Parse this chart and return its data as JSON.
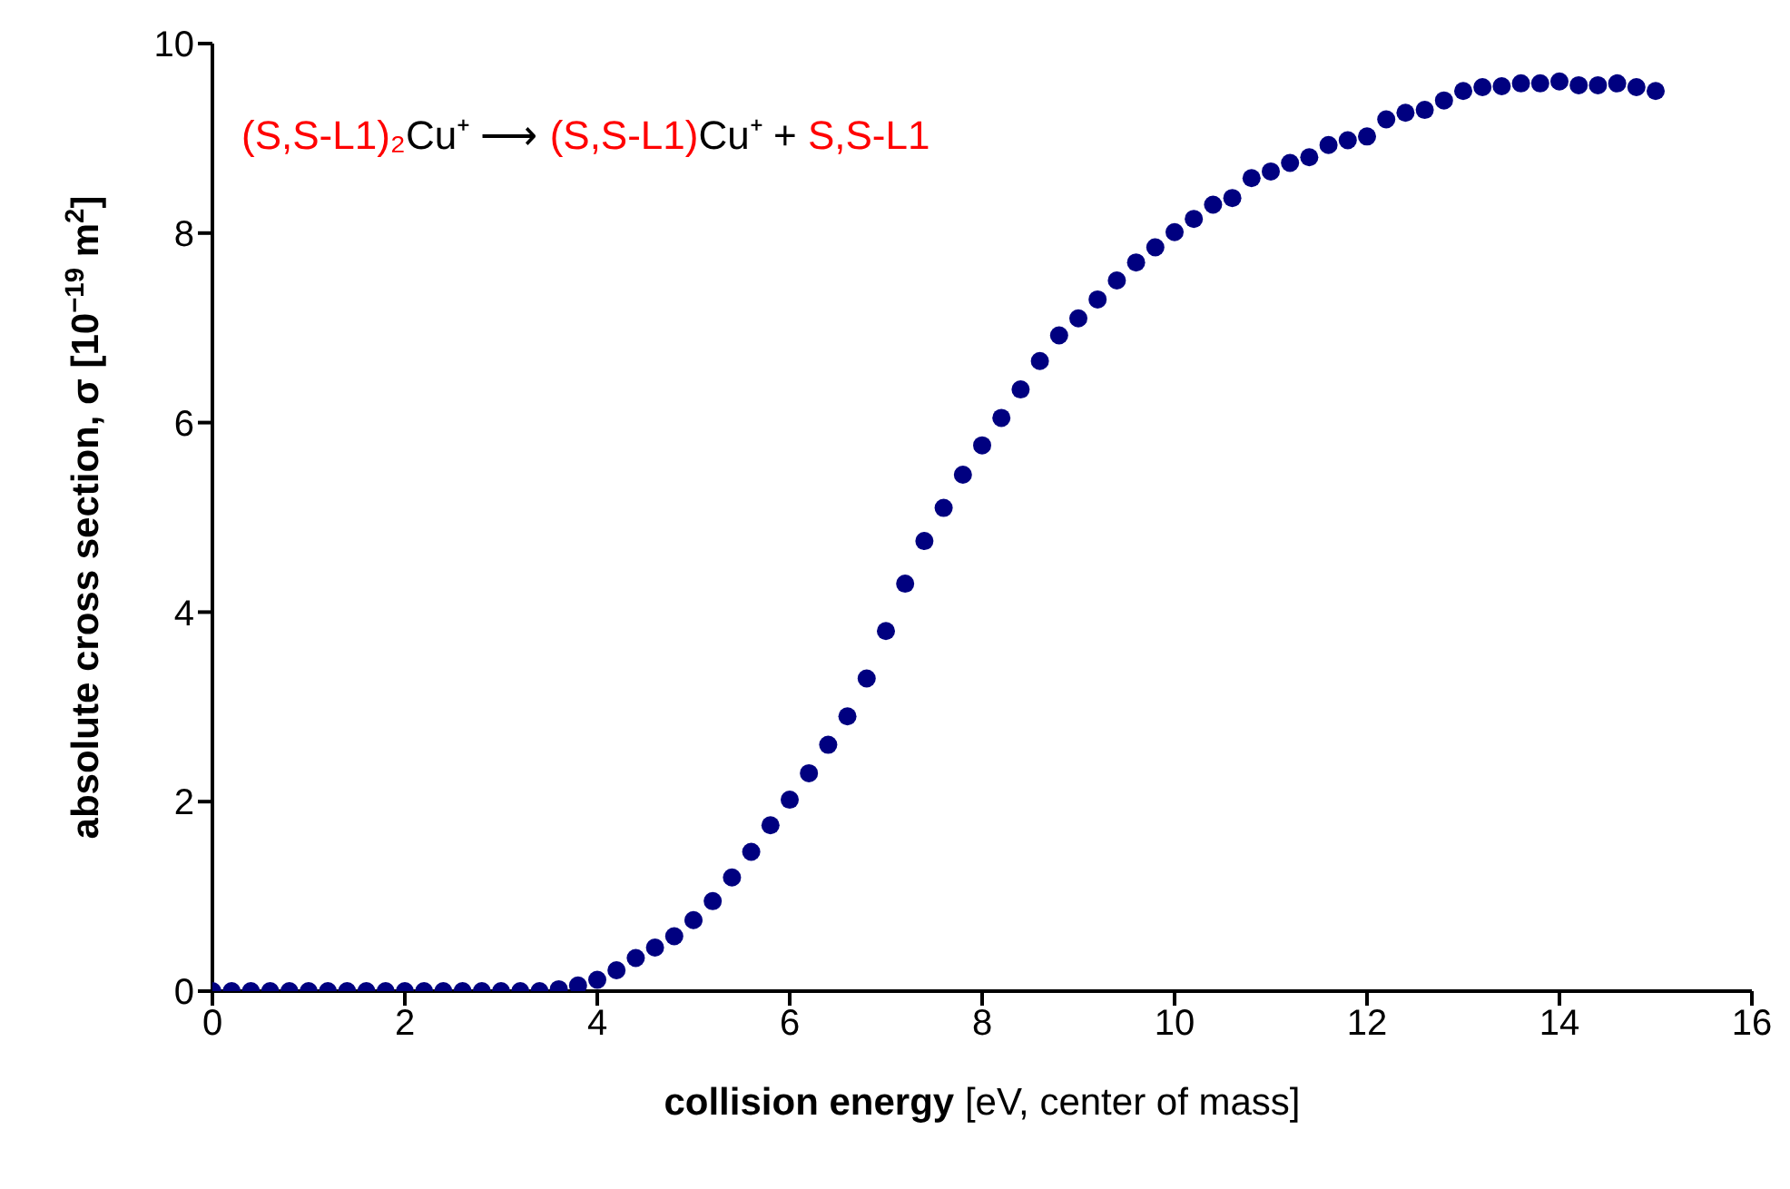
{
  "chart_data": {
    "type": "scatter",
    "xlabel": "collision energy [eV, center of mass]",
    "ylabel": "absolute cross section, σ  [10$^{−19}$ m$^{2}$]",
    "annotations": [
      "(S,S-L1)₂Cu⁺ ⟶ (S,S-L1)Cu⁺ + S,S-L1"
    ],
    "x": [
      0,
      0.2,
      0.4,
      0.6,
      0.8,
      1.0,
      1.2,
      1.4,
      1.6,
      1.8,
      2.0,
      2.2,
      2.4,
      2.6,
      2.8,
      3.0,
      3.2,
      3.4,
      3.6,
      3.8,
      4.0,
      4.2,
      4.4,
      4.6,
      4.8,
      5.0,
      5.2,
      5.4,
      5.6,
      5.8,
      6.0,
      6.2,
      6.4,
      6.6,
      6.8,
      7.0,
      7.2,
      7.4,
      7.6,
      7.8,
      8.0,
      8.2,
      8.4,
      8.6,
      8.8,
      9.0,
      9.2,
      9.4,
      9.6,
      9.8,
      10.0,
      10.2,
      10.4,
      10.6,
      10.8,
      11.0,
      11.2,
      11.4,
      11.6,
      11.8,
      12.0,
      12.2,
      12.4,
      12.6,
      12.8,
      13.0,
      13.2,
      13.4,
      13.6,
      13.8,
      14.0,
      14.2,
      14.4,
      14.6,
      14.8,
      15.0
    ],
    "series": [
      {
        "color": "#000080",
        "values": [
          0,
          0,
          0,
          0,
          0,
          0,
          0,
          0,
          0,
          0,
          0,
          0,
          0,
          0,
          0,
          0,
          0,
          0,
          0.02,
          0.06,
          0.12,
          0.22,
          0.35,
          0.46,
          0.58,
          0.75,
          0.95,
          1.2,
          1.47,
          1.75,
          2.02,
          2.3,
          2.6,
          2.9,
          3.3,
          3.8,
          4.3,
          4.75,
          5.1,
          5.45,
          5.76,
          6.05,
          6.35,
          6.65,
          6.92,
          7.1,
          7.3,
          7.5,
          7.69,
          7.85,
          8.01,
          8.15,
          8.3,
          8.37,
          8.58,
          8.65,
          8.74,
          8.8,
          8.93,
          8.98,
          9.02,
          9.2,
          9.27,
          9.3,
          9.4,
          9.5,
          9.54,
          9.55,
          9.58,
          9.58,
          9.6,
          9.56,
          9.56,
          9.58,
          9.54,
          9.5
        ]
      }
    ],
    "xlim": [
      0,
      16
    ],
    "xticks": [
      0,
      2,
      4,
      6,
      8,
      10,
      12,
      14,
      16
    ],
    "ylim": [
      0,
      10
    ],
    "yticks": [
      0,
      2,
      4,
      6,
      8,
      10
    ],
    "marker": "circle",
    "grid": false,
    "legend": false
  }
}
